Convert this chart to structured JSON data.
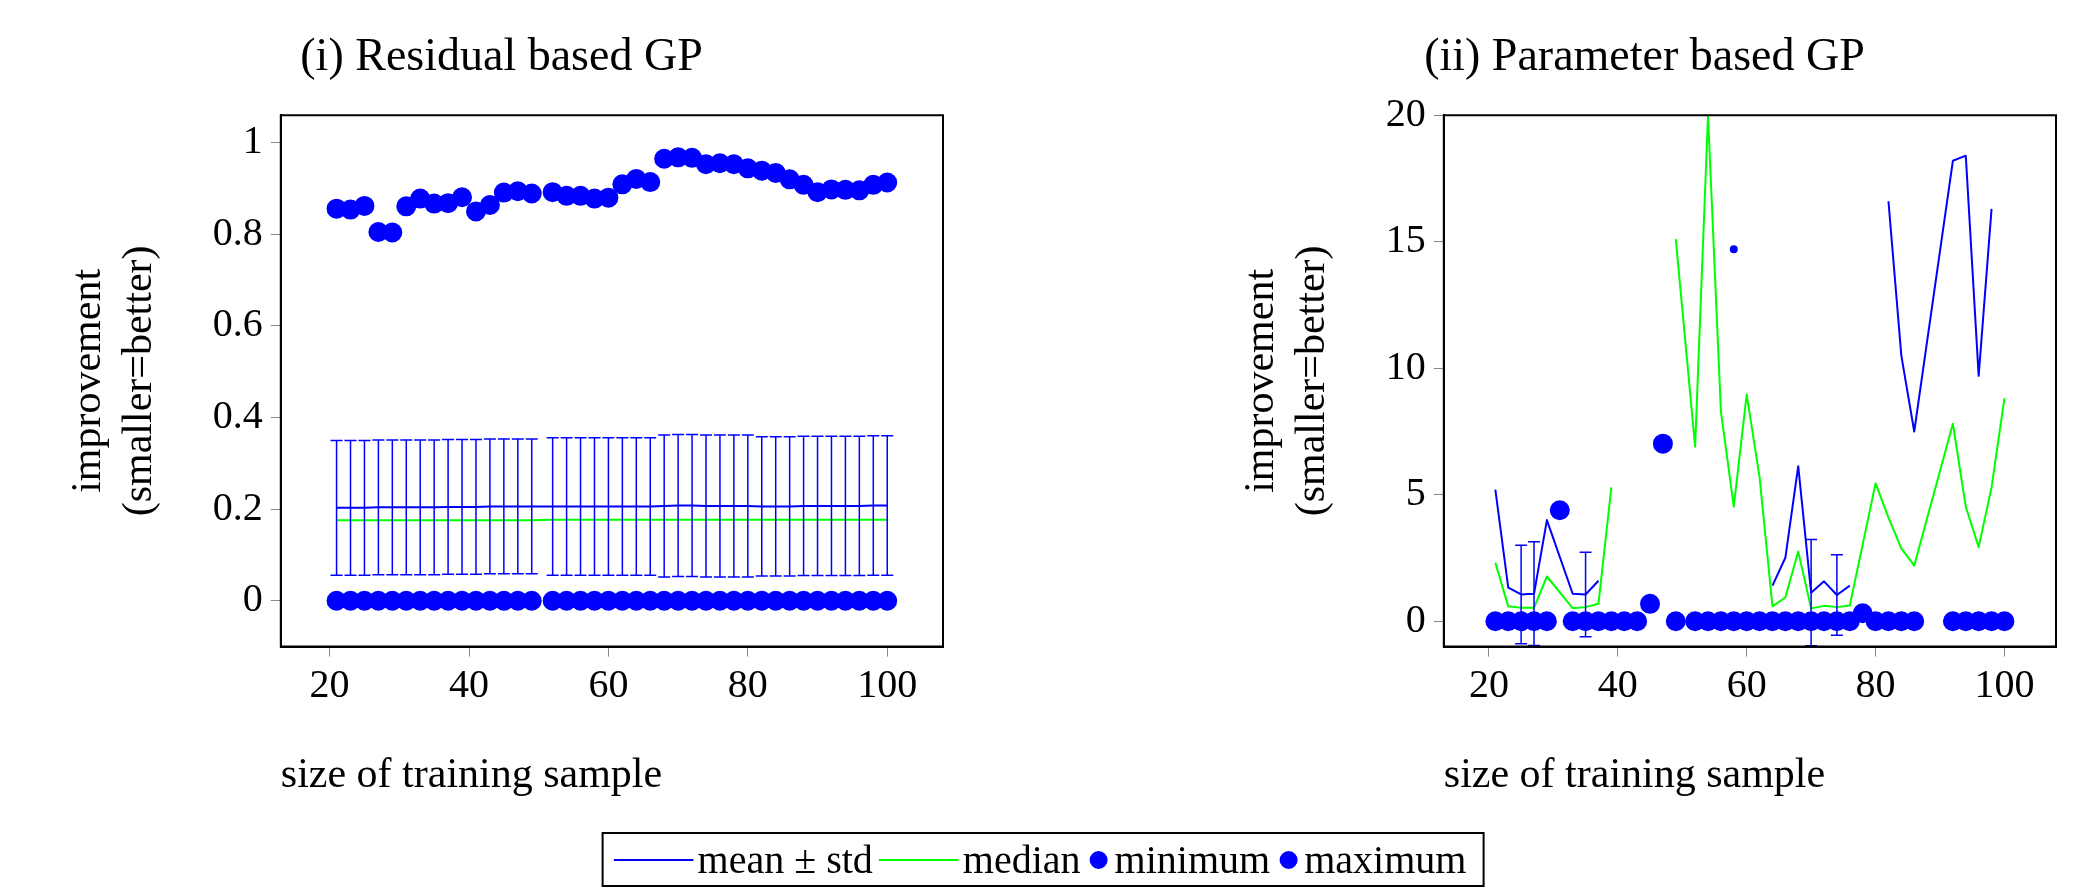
{
  "chart_data": [
    {
      "type": "line",
      "title": "(i) Residual based GP",
      "xlabel": "size of training sample",
      "ylabel": "improvement\n(smaller=better)",
      "xlim": [
        13,
        108
      ],
      "xticks": [
        20,
        40,
        60,
        80,
        100
      ],
      "ylim": [
        -0.1,
        1.06
      ],
      "yticks": [
        0,
        0.2,
        0.4,
        0.6,
        0.8,
        1
      ],
      "legend": "bottom",
      "series": [
        {
          "name": "mean ± std",
          "type": "line",
          "color": "#0000ff",
          "marker": "none",
          "x": [
            21,
            23,
            25,
            27,
            29,
            31,
            33,
            35,
            37,
            39,
            41,
            43,
            45,
            47,
            49,
            52,
            54,
            56,
            58,
            60,
            62,
            64,
            66,
            68,
            70,
            72,
            74,
            76,
            78,
            80,
            82,
            84,
            86,
            88,
            90,
            92,
            94,
            96,
            98,
            100
          ],
          "values": [
            0.203,
            0.203,
            0.203,
            0.204,
            0.204,
            0.204,
            0.204,
            0.204,
            0.205,
            0.205,
            0.205,
            0.206,
            0.206,
            0.206,
            0.206,
            0.206,
            0.206,
            0.206,
            0.206,
            0.206,
            0.206,
            0.206,
            0.206,
            0.207,
            0.208,
            0.208,
            0.207,
            0.207,
            0.207,
            0.207,
            0.206,
            0.206,
            0.206,
            0.207,
            0.207,
            0.207,
            0.207,
            0.207,
            0.208,
            0.208
          ],
          "errors": [
            0.147,
            0.147,
            0.147,
            0.147,
            0.147,
            0.147,
            0.147,
            0.147,
            0.147,
            0.147,
            0.147,
            0.147,
            0.147,
            0.147,
            0.147,
            0.15,
            0.15,
            0.15,
            0.15,
            0.15,
            0.15,
            0.15,
            0.15,
            0.155,
            0.155,
            0.155,
            0.155,
            0.155,
            0.155,
            0.155,
            0.152,
            0.152,
            0.152,
            0.152,
            0.152,
            0.152,
            0.152,
            0.152,
            0.152,
            0.152
          ]
        },
        {
          "name": "median",
          "type": "line",
          "color": "#00ff00",
          "marker": "none",
          "x": [
            21,
            23,
            25,
            27,
            29,
            31,
            33,
            35,
            37,
            39,
            41,
            43,
            45,
            47,
            49,
            52,
            54,
            56,
            58,
            60,
            62,
            64,
            66,
            68,
            70,
            72,
            74,
            76,
            78,
            80,
            82,
            84,
            86,
            88,
            90,
            92,
            94,
            96,
            98,
            100
          ],
          "values": [
            0.176,
            0.176,
            0.176,
            0.176,
            0.176,
            0.176,
            0.176,
            0.176,
            0.176,
            0.176,
            0.176,
            0.176,
            0.176,
            0.176,
            0.176,
            0.177,
            0.177,
            0.177,
            0.177,
            0.177,
            0.177,
            0.177,
            0.177,
            0.177,
            0.177,
            0.177,
            0.177,
            0.177,
            0.177,
            0.177,
            0.177,
            0.177,
            0.177,
            0.177,
            0.177,
            0.177,
            0.177,
            0.177,
            0.177,
            0.177
          ]
        },
        {
          "name": "minimum",
          "type": "scatter",
          "color": "#0000ff",
          "marker": "circle",
          "x": [
            21,
            23,
            25,
            27,
            29,
            31,
            33,
            35,
            37,
            39,
            41,
            43,
            45,
            47,
            49,
            52,
            54,
            56,
            58,
            60,
            62,
            64,
            66,
            68,
            70,
            72,
            74,
            76,
            78,
            80,
            82,
            84,
            86,
            88,
            90,
            92,
            94,
            96,
            98,
            100
          ],
          "values": [
            0,
            0,
            0,
            0,
            0,
            0,
            0,
            0,
            0,
            0,
            0,
            0,
            0,
            0,
            0,
            0,
            0,
            0,
            0,
            0,
            0,
            0,
            0,
            0,
            0,
            0,
            0,
            0,
            0,
            0,
            0,
            0,
            0,
            0,
            0,
            0,
            0,
            0,
            0,
            0
          ]
        },
        {
          "name": "maximum",
          "type": "scatter",
          "color": "#0000ff",
          "marker": "circle",
          "x": [
            21,
            23,
            25,
            27,
            29,
            31,
            33,
            35,
            37,
            39,
            41,
            43,
            45,
            47,
            49,
            52,
            54,
            56,
            58,
            60,
            62,
            64,
            66,
            68,
            70,
            72,
            74,
            76,
            78,
            80,
            82,
            84,
            86,
            88,
            90,
            92,
            94,
            96,
            98,
            100
          ],
          "values": [
            0.856,
            0.854,
            0.862,
            0.805,
            0.804,
            0.861,
            0.878,
            0.867,
            0.868,
            0.881,
            0.85,
            0.864,
            0.891,
            0.894,
            0.889,
            0.892,
            0.884,
            0.884,
            0.878,
            0.88,
            0.909,
            0.921,
            0.914,
            0.965,
            0.968,
            0.967,
            0.953,
            0.955,
            0.953,
            0.944,
            0.939,
            0.934,
            0.92,
            0.908,
            0.892,
            0.898,
            0.897,
            0.896,
            0.908,
            0.913
          ]
        }
      ]
    },
    {
      "type": "line",
      "title": "(ii) Parameter based GP",
      "xlabel": "size of training sample",
      "ylabel": "improvement\n(smaller=better)",
      "xlim": [
        13,
        108
      ],
      "xticks": [
        20,
        40,
        60,
        80,
        100
      ],
      "ylim": [
        -1,
        20
      ],
      "yticks": [
        0,
        5,
        10,
        15,
        20
      ],
      "series": [
        {
          "type": "line",
          "color": "#0000ff",
          "marker": "none",
          "x": [
            21,
            23,
            25,
            27,
            29,
            33,
            35,
            37,
            39,
            41,
            43,
            49,
            52,
            54,
            56,
            58,
            60,
            62,
            64,
            66,
            68,
            70,
            72,
            74,
            76,
            80,
            82,
            84,
            86,
            92,
            94,
            96,
            98
          ],
          "values": [
            5.2,
            1.33,
            1.06,
            1.09,
            4.0,
            1.09,
            1.06,
            1.6,
            null,
            null,
            null,
            null,
            null,
            null,
            null,
            14.7,
            null,
            null,
            1.41,
            2.51,
            6.13,
            1.13,
            1.58,
            1.04,
            1.41,
            null,
            16.6,
            10.5,
            7.5,
            18.2,
            18.4,
            9.7,
            16.3
          ],
          "errors": [
            null,
            null,
            1.95,
            2.05,
            null,
            null,
            1.67,
            null,
            null,
            null,
            null,
            null,
            null,
            null,
            null,
            null,
            null,
            null,
            null,
            null,
            null,
            2.1,
            null,
            1.59,
            null,
            null,
            null,
            null,
            null,
            null,
            null,
            null,
            null
          ]
        },
        {
          "type": "line",
          "color": "#00ff00",
          "marker": "none",
          "x": [
            21,
            23,
            25,
            27,
            29,
            33,
            35,
            37,
            39,
            41,
            43,
            49,
            52,
            54,
            56,
            58,
            60,
            62,
            64,
            66,
            68,
            70,
            72,
            74,
            76,
            80,
            82,
            84,
            86,
            92,
            94,
            96,
            98,
            100
          ],
          "values": [
            2.31,
            0.59,
            0.54,
            0.54,
            1.77,
            0.52,
            0.56,
            0.69,
            5.29,
            null,
            null,
            15.1,
            6.9,
            20,
            8.3,
            4.53,
            8.96,
            5.7,
            0.59,
            0.94,
            2.76,
            0.51,
            0.61,
            0.56,
            0.62,
            5.45,
            4.1,
            2.88,
            2.2,
            7.81,
            4.53,
            2.93,
            5.29,
            8.82
          ]
        },
        {
          "type": "scatter",
          "color": "#0000ff",
          "marker": "circle",
          "x": [
            21,
            23,
            25,
            27,
            29,
            33,
            35,
            37,
            39,
            41,
            43,
            49,
            52,
            54,
            56,
            58,
            60,
            62,
            64,
            66,
            68,
            70,
            72,
            74,
            76,
            80,
            82,
            84,
            86,
            92,
            94,
            96,
            98,
            100
          ],
          "values": [
            0,
            0,
            0,
            0,
            0,
            0,
            0,
            0,
            0,
            0,
            0,
            0,
            0,
            0,
            0,
            0,
            0,
            0,
            0,
            0,
            0,
            0,
            0,
            0,
            0,
            0,
            0,
            0,
            0,
            0,
            0,
            0,
            0,
            0
          ]
        },
        {
          "type": "scatter",
          "color": "#0000ff",
          "marker": "circle",
          "x": [
            31,
            45,
            47,
            78
          ],
          "values": [
            4.39,
            0.69,
            7.02,
            0.32
          ]
        }
      ]
    }
  ]
}
